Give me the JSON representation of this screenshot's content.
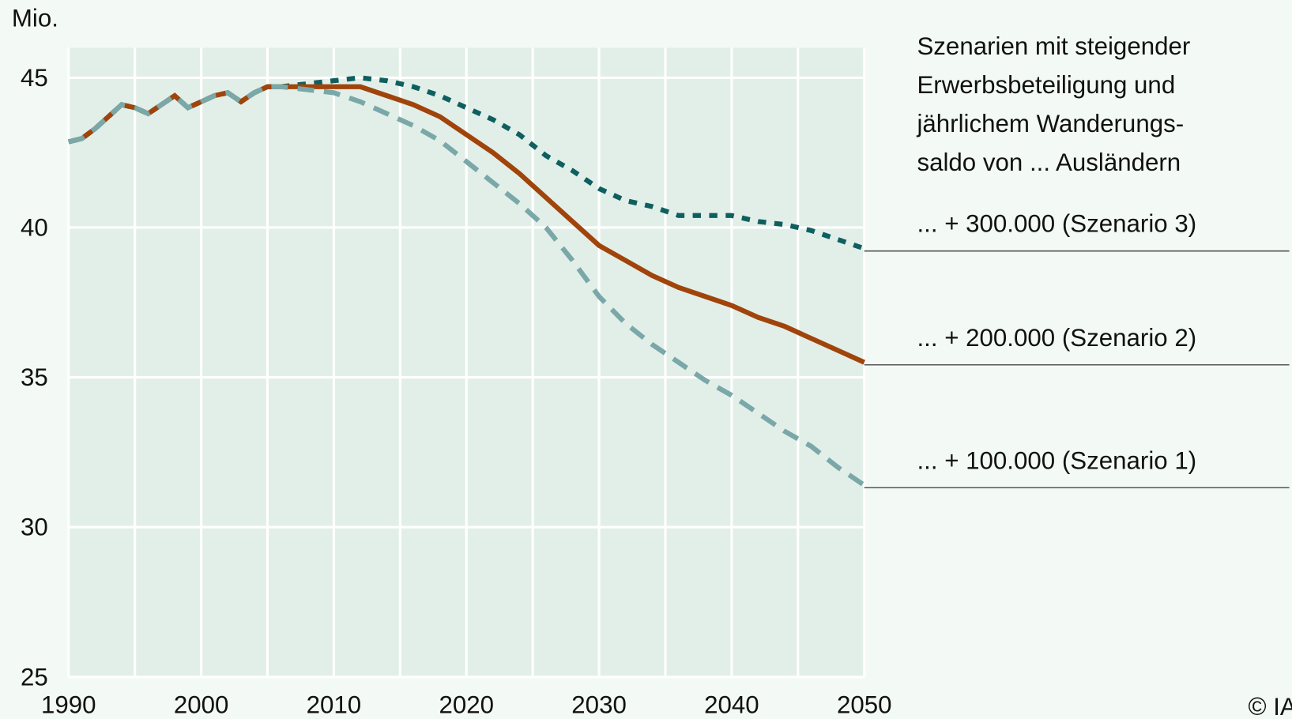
{
  "chart_data": {
    "type": "line",
    "y_label": "Mio.",
    "annotation_lines": [
      "Szenarien mit steigender",
      "Erwerbsbeteiligung und",
      "jährlichem Wanderungs-",
      "saldo von ... Ausländern"
    ],
    "copyright": "© IA",
    "x": [
      1990,
      1991,
      1992,
      1993,
      1994,
      1995,
      1996,
      1997,
      1998,
      1999,
      2000,
      2001,
      2002,
      2003,
      2004,
      2005,
      2006,
      2008,
      2010,
      2012,
      2014,
      2016,
      2018,
      2020,
      2022,
      2024,
      2026,
      2028,
      2030,
      2032,
      2034,
      2036,
      2038,
      2040,
      2042,
      2044,
      2046,
      2048,
      2050
    ],
    "series": [
      {
        "name": "... + 300.000 (Szenario 3)",
        "color": "#0f5f60",
        "dash": "10 10",
        "values": [
          42.86,
          42.97,
          43.3,
          43.7,
          44.1,
          44.0,
          43.8,
          44.1,
          44.4,
          44.0,
          44.2,
          44.4,
          44.5,
          44.2,
          44.5,
          44.7,
          44.7,
          44.8,
          44.9,
          45.0,
          44.9,
          44.7,
          44.4,
          44.0,
          43.6,
          43.1,
          42.4,
          41.9,
          41.3,
          40.9,
          40.7,
          40.4,
          40.4,
          40.4,
          40.2,
          40.1,
          39.9,
          39.6,
          39.3
        ]
      },
      {
        "name": "... + 200.000 (Szenario 2)",
        "color": "#a0440c",
        "dash": "none",
        "values": [
          42.86,
          42.97,
          43.3,
          43.7,
          44.1,
          44.0,
          43.8,
          44.1,
          44.4,
          44.0,
          44.2,
          44.4,
          44.5,
          44.2,
          44.5,
          44.7,
          44.7,
          44.7,
          44.7,
          44.7,
          44.4,
          44.1,
          43.7,
          43.1,
          42.5,
          41.8,
          41.0,
          40.2,
          39.4,
          38.9,
          38.4,
          38.0,
          37.7,
          37.4,
          37.0,
          36.7,
          36.3,
          35.9,
          35.5
        ]
      },
      {
        "name": "... + 100.000 (Szenario 1)",
        "color": "#7aa8a8",
        "dash": "20 12",
        "values": [
          42.86,
          42.97,
          43.3,
          43.7,
          44.1,
          44.0,
          43.8,
          44.1,
          44.4,
          44.0,
          44.2,
          44.4,
          44.5,
          44.2,
          44.5,
          44.7,
          44.7,
          44.6,
          44.5,
          44.2,
          43.8,
          43.4,
          42.9,
          42.2,
          41.5,
          40.8,
          40.0,
          38.9,
          37.7,
          36.8,
          36.1,
          35.5,
          34.9,
          34.4,
          33.8,
          33.2,
          32.7,
          32.0,
          31.4
        ]
      }
    ],
    "xlim": [
      1990,
      2050
    ],
    "xticks": [
      1990,
      2000,
      2010,
      2020,
      2030,
      2040,
      2050
    ],
    "xgrid": [
      1990,
      1995,
      2000,
      2005,
      2010,
      2015,
      2020,
      2025,
      2030,
      2035,
      2040,
      2045,
      2050
    ],
    "ylim": [
      25,
      46
    ],
    "yticks": [
      25,
      30,
      35,
      40,
      45
    ],
    "grid": true
  }
}
